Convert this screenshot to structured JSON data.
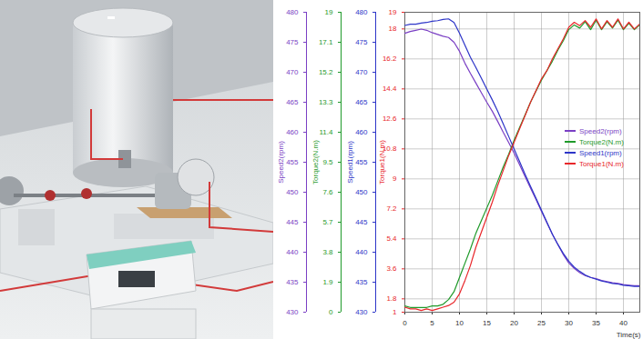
{
  "chart_data": {
    "type": "line",
    "x": [
      0,
      1,
      2,
      3,
      4,
      5,
      6,
      7,
      8,
      9,
      10,
      11,
      12,
      13,
      14,
      15,
      16,
      17,
      18,
      19,
      20,
      21,
      22,
      23,
      24,
      25,
      26,
      27,
      28,
      29,
      30,
      31,
      32,
      33,
      34,
      35,
      36,
      37,
      38,
      39,
      40,
      41,
      42,
      43
    ],
    "xlim": [
      0,
      43
    ],
    "xticks": [
      0,
      5,
      10,
      15,
      20,
      25,
      30,
      35,
      40
    ],
    "x_label": "Time(s)",
    "grid": true,
    "legend": "right",
    "series": [
      {
        "name": "Speed2(rpm)",
        "color": "#7a3fc4",
        "y_label": "Speed2(rpm)",
        "ylim": [
          430,
          480
        ],
        "yticks": [
          430,
          435,
          440,
          445,
          450,
          455,
          460,
          465,
          470,
          475,
          480
        ],
        "values": [
          476.5,
          476.8,
          477,
          477.2,
          477,
          476.6,
          476.3,
          476,
          475.8,
          475,
          473.5,
          471.5,
          469.8,
          468.2,
          466.6,
          465,
          463.5,
          461.8,
          460,
          458.3,
          456.5,
          454.6,
          452.6,
          450.7,
          448.8,
          446.8,
          444.9,
          443,
          441.3,
          439.6,
          438.2,
          437.3,
          436.6,
          436.1,
          435.8,
          435.6,
          435.3,
          435.1,
          434.9,
          434.8,
          434.6,
          434.5,
          434.4,
          434.4
        ]
      },
      {
        "name": "Torque2(N.m)",
        "color": "#1f9a2a",
        "y_label": "Torque2(N.m)",
        "ylim": [
          0,
          19
        ],
        "yticks": [
          0,
          1.9,
          3.8,
          5.7,
          7.6,
          9.5,
          11.4,
          13.3,
          15.2,
          17.1,
          19
        ],
        "values": [
          0.4,
          0.3,
          0.3,
          0.3,
          0.3,
          0.4,
          0.4,
          0.5,
          0.8,
          1.3,
          2.2,
          3.1,
          4,
          5,
          5.8,
          6.6,
          7.4,
          8.3,
          9.2,
          10,
          10.9,
          11.7,
          12.5,
          13.3,
          14,
          14.7,
          15.3,
          15.9,
          16.6,
          17.2,
          17.9,
          18.2,
          18,
          18.4,
          17.9,
          18.5,
          17.9,
          18.4,
          18,
          18.5,
          17.9,
          18.3,
          17.9,
          18.2
        ]
      },
      {
        "name": "Speed1(rpm)",
        "color": "#2d35c8",
        "y_label": "Speed1(rpm)",
        "ylim": [
          430,
          480
        ],
        "yticks": [
          430,
          435,
          440,
          445,
          450,
          455,
          460,
          465,
          470,
          475,
          480
        ],
        "values": [
          477.8,
          478,
          478,
          478.2,
          478.3,
          478.5,
          478.6,
          478.8,
          478.9,
          478.3,
          476.5,
          474.5,
          472.5,
          470.8,
          469,
          467.2,
          465.4,
          463.5,
          461.4,
          459.3,
          457.2,
          455.1,
          453,
          451,
          449,
          447,
          445,
          443,
          441.3,
          439.8,
          438.5,
          437.5,
          436.8,
          436.2,
          435.8,
          435.5,
          435.2,
          435,
          434.8,
          434.7,
          434.5,
          434.4,
          434.3,
          434.3
        ]
      },
      {
        "name": "Torque1(N.m)",
        "color": "#e8262a",
        "y_label": "Torque1(N.m)",
        "ylim": [
          1,
          19
        ],
        "yticks": [
          1,
          1.8,
          3.6,
          5.4,
          7.2,
          9,
          10.8,
          12.6,
          14.4,
          16.2,
          18,
          19
        ],
        "values": [
          1.3,
          1.2,
          1.2,
          1.1,
          1.2,
          1.1,
          1.2,
          1.3,
          1.4,
          1.6,
          2.1,
          2.9,
          3.8,
          4.9,
          5.8,
          6.7,
          7.6,
          8.6,
          9.5,
          10.4,
          11.2,
          12,
          12.8,
          13.6,
          14.3,
          15,
          15.5,
          16.2,
          16.8,
          17.4,
          18.1,
          18.4,
          18.2,
          18.5,
          18.1,
          18.6,
          18,
          18.5,
          18.1,
          18.6,
          18,
          18.4,
          18,
          18.3
        ]
      }
    ]
  }
}
